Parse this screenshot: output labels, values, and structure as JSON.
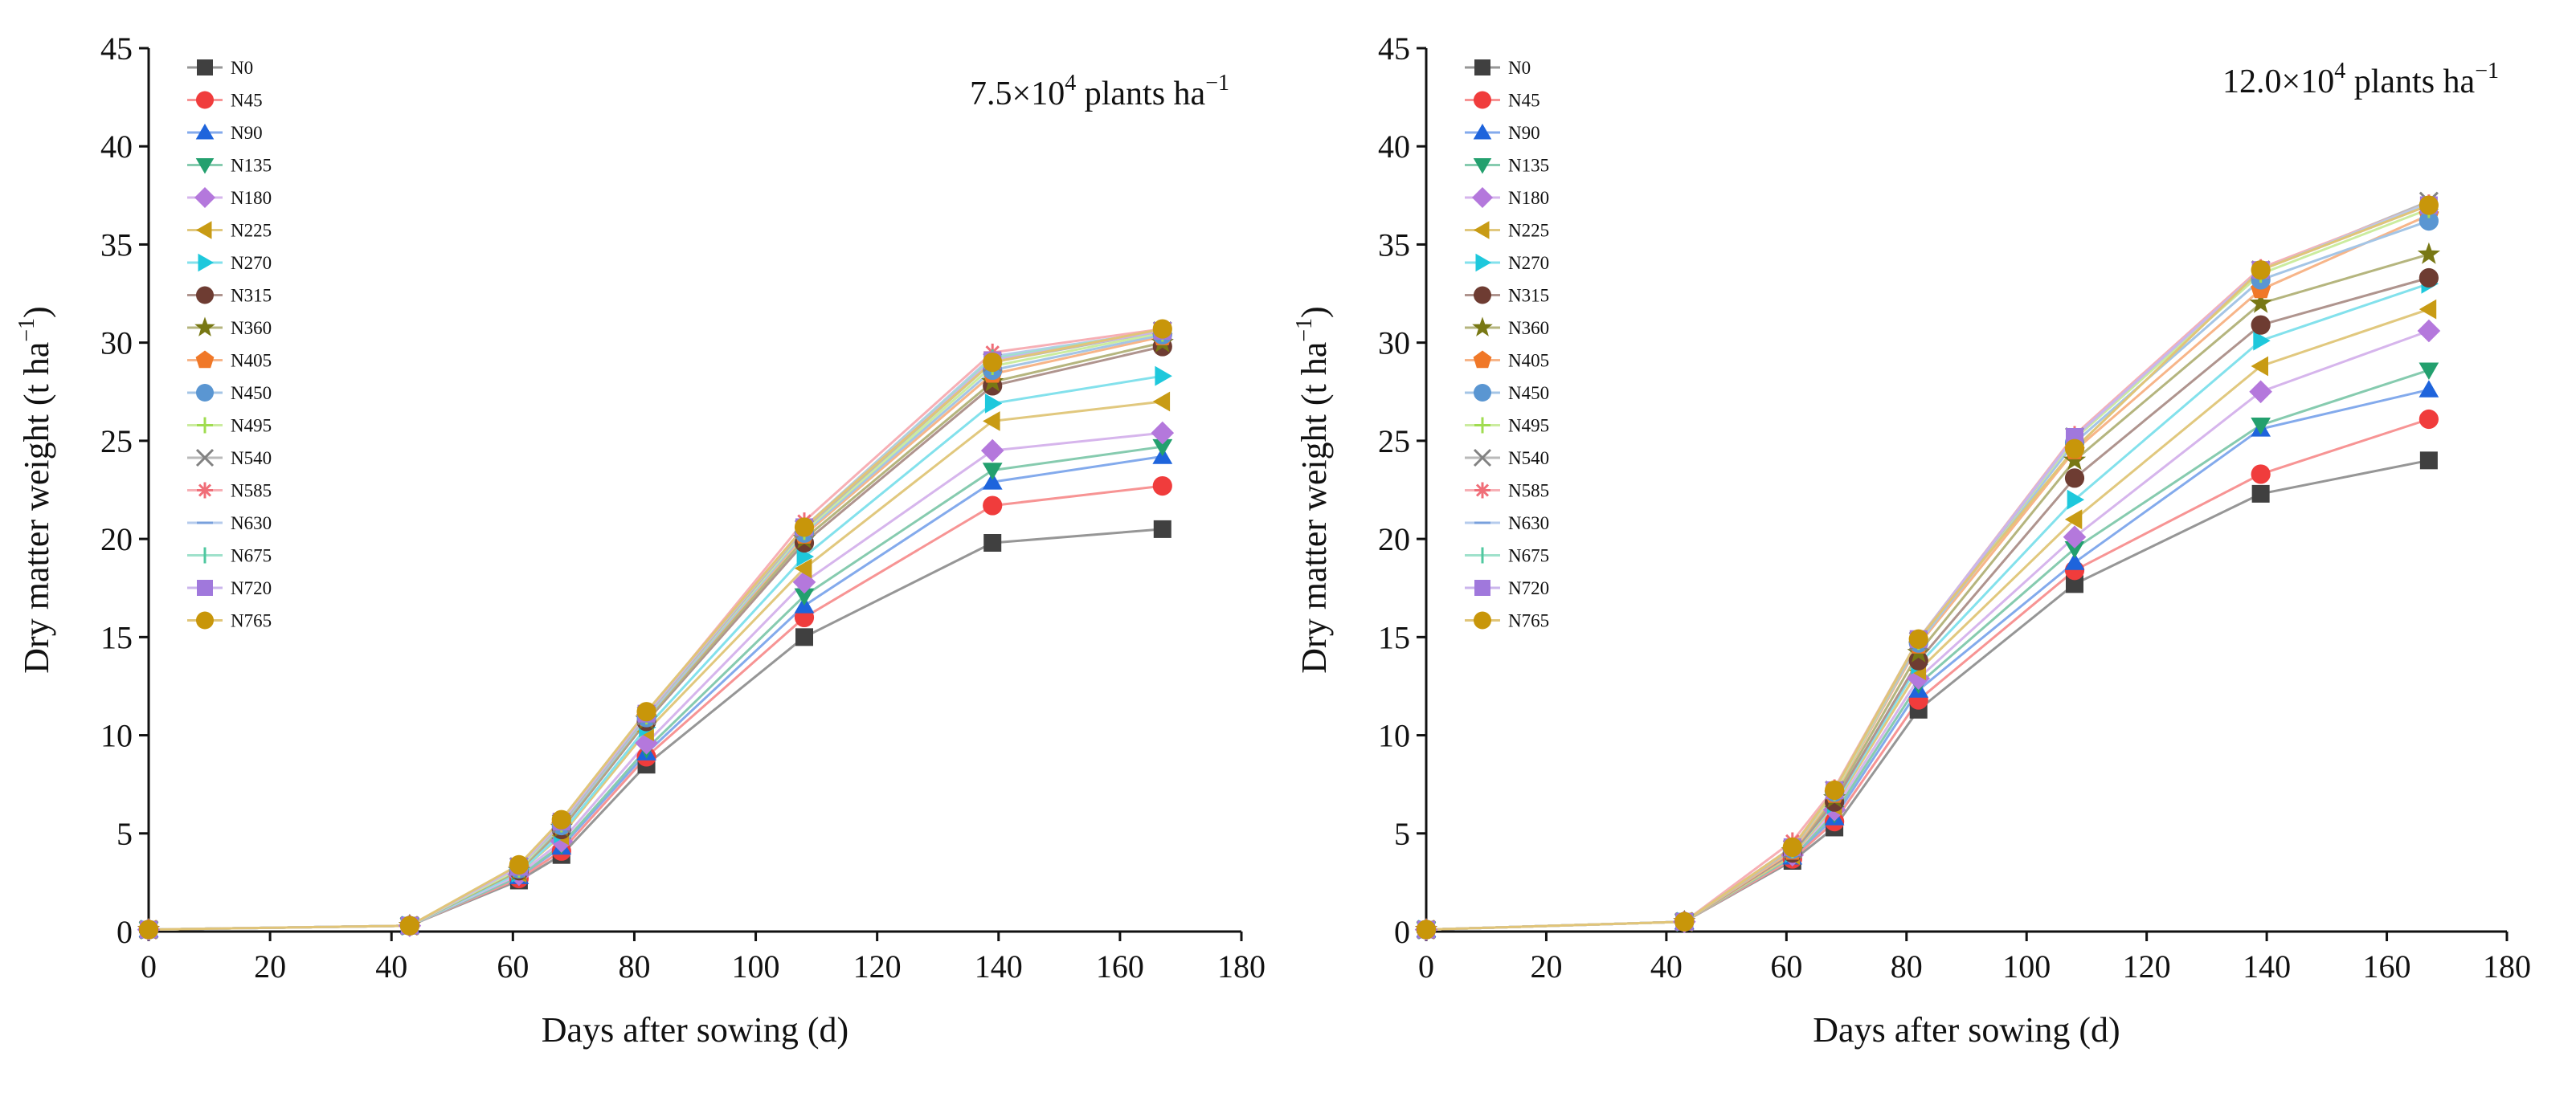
{
  "chart_data": [
    {
      "type": "line",
      "annotation": {
        "base": "7.5×10",
        "exp": "4",
        "mid": " plants ha",
        "sup": "−1"
      },
      "xlabel": "Days after sowing (d)",
      "ylabel": {
        "main": "Dry matter weight (t ha",
        "sup": "−1",
        "close": ")"
      },
      "xlim": [
        0,
        180
      ],
      "ylim": [
        0,
        45
      ],
      "xticks": [
        0,
        20,
        40,
        60,
        80,
        100,
        120,
        140,
        160,
        180
      ],
      "yticks": [
        0,
        5,
        10,
        15,
        20,
        25,
        30,
        35,
        40,
        45
      ],
      "x": [
        0,
        43,
        61,
        68,
        82,
        108,
        139,
        167
      ],
      "legend_position": "top-left",
      "series": [
        {
          "name": "N0",
          "color": "#404040",
          "marker": "square",
          "values": [
            0.1,
            0.3,
            2.6,
            3.9,
            8.5,
            15.0,
            19.8,
            20.5
          ]
        },
        {
          "name": "N45",
          "color": "#f03c3c",
          "marker": "circle",
          "values": [
            0.1,
            0.3,
            2.7,
            4.1,
            8.9,
            16.0,
            21.7,
            22.7
          ]
        },
        {
          "name": "N90",
          "color": "#1e64dc",
          "marker": "triangle-up",
          "values": [
            0.1,
            0.3,
            2.8,
            4.3,
            9.1,
            16.6,
            22.9,
            24.2
          ]
        },
        {
          "name": "N135",
          "color": "#23a06e",
          "marker": "triangle-down",
          "values": [
            0.1,
            0.3,
            2.8,
            4.4,
            9.3,
            17.1,
            23.5,
            24.7
          ]
        },
        {
          "name": "N180",
          "color": "#b478dc",
          "marker": "diamond",
          "values": [
            0.1,
            0.3,
            2.9,
            4.6,
            9.6,
            17.8,
            24.5,
            25.4
          ]
        },
        {
          "name": "N225",
          "color": "#c89b14",
          "marker": "triangle-left",
          "values": [
            0.1,
            0.3,
            3.0,
            4.9,
            10.2,
            18.5,
            26.0,
            27.0
          ]
        },
        {
          "name": "N270",
          "color": "#1ec8dc",
          "marker": "triangle-right",
          "values": [
            0.1,
            0.3,
            3.0,
            5.0,
            10.4,
            19.1,
            26.9,
            28.3
          ]
        },
        {
          "name": "N315",
          "color": "#6e3c32",
          "marker": "circle",
          "values": [
            0.1,
            0.3,
            3.1,
            5.2,
            10.7,
            19.8,
            27.8,
            29.8
          ]
        },
        {
          "name": "N360",
          "color": "#787814",
          "marker": "star",
          "values": [
            0.1,
            0.3,
            3.1,
            5.3,
            10.8,
            20.0,
            28.0,
            30.0
          ]
        },
        {
          "name": "N405",
          "color": "#f07828",
          "marker": "pentagon",
          "values": [
            0.1,
            0.3,
            3.2,
            5.4,
            10.9,
            20.2,
            28.4,
            30.3
          ]
        },
        {
          "name": "N450",
          "color": "#5a96d2",
          "marker": "circle",
          "values": [
            0.1,
            0.3,
            3.2,
            5.4,
            10.9,
            20.3,
            28.6,
            30.4
          ]
        },
        {
          "name": "N495",
          "color": "#a0dc50",
          "marker": "plus",
          "values": [
            0.1,
            0.3,
            3.2,
            5.5,
            11.0,
            20.4,
            28.8,
            30.5
          ]
        },
        {
          "name": "N540",
          "color": "#828282",
          "marker": "x",
          "values": [
            0.1,
            0.3,
            3.3,
            5.5,
            11.0,
            20.5,
            29.0,
            30.6
          ]
        },
        {
          "name": "N585",
          "color": "#f06e78",
          "marker": "asterisk",
          "values": [
            0.1,
            0.3,
            3.3,
            5.6,
            11.1,
            20.9,
            29.5,
            30.7
          ]
        },
        {
          "name": "N630",
          "color": "#78a0dc",
          "marker": "dash",
          "values": [
            0.1,
            0.3,
            3.3,
            5.6,
            11.1,
            20.6,
            29.3,
            30.6
          ]
        },
        {
          "name": "N675",
          "color": "#50c8a0",
          "marker": "vline",
          "values": [
            0.1,
            0.3,
            3.3,
            5.6,
            11.1,
            20.6,
            29.2,
            30.6
          ]
        },
        {
          "name": "N720",
          "color": "#a078dc",
          "marker": "square",
          "values": [
            0.1,
            0.3,
            3.3,
            5.6,
            11.1,
            20.6,
            29.1,
            30.6
          ]
        },
        {
          "name": "N765",
          "color": "#c8960a",
          "marker": "circle",
          "values": [
            0.1,
            0.3,
            3.4,
            5.7,
            11.2,
            20.6,
            29.0,
            30.7
          ]
        }
      ]
    },
    {
      "type": "line",
      "annotation": {
        "base": "12.0×10",
        "exp": "4",
        "mid": " plants ha",
        "sup": "−1"
      },
      "xlabel": "Days after sowing (d)",
      "ylabel": {
        "main": "Dry matter weight (t ha",
        "sup": "−1",
        "close": ")"
      },
      "xlim": [
        0,
        180
      ],
      "ylim": [
        0,
        45
      ],
      "xticks": [
        0,
        20,
        40,
        60,
        80,
        100,
        120,
        140,
        160,
        180
      ],
      "yticks": [
        0,
        5,
        10,
        15,
        20,
        25,
        30,
        35,
        40,
        45
      ],
      "x": [
        0,
        43,
        61,
        68,
        82,
        108,
        139,
        167
      ],
      "legend_position": "top-left",
      "series": [
        {
          "name": "N0",
          "color": "#404040",
          "marker": "square",
          "values": [
            0.1,
            0.5,
            3.6,
            5.3,
            11.3,
            17.7,
            22.3,
            24.0
          ]
        },
        {
          "name": "N45",
          "color": "#f03c3c",
          "marker": "circle",
          "values": [
            0.1,
            0.5,
            3.7,
            5.6,
            11.8,
            18.4,
            23.3,
            26.1
          ]
        },
        {
          "name": "N90",
          "color": "#1e64dc",
          "marker": "triangle-up",
          "values": [
            0.1,
            0.5,
            3.8,
            5.8,
            12.3,
            18.8,
            25.6,
            27.6
          ]
        },
        {
          "name": "N135",
          "color": "#23a06e",
          "marker": "triangle-down",
          "values": [
            0.1,
            0.5,
            3.8,
            6.0,
            12.6,
            19.5,
            25.8,
            28.6
          ]
        },
        {
          "name": "N180",
          "color": "#b478dc",
          "marker": "diamond",
          "values": [
            0.1,
            0.5,
            3.9,
            6.2,
            12.9,
            20.1,
            27.5,
            30.6
          ]
        },
        {
          "name": "N225",
          "color": "#c89b14",
          "marker": "triangle-left",
          "values": [
            0.1,
            0.5,
            3.9,
            6.4,
            13.3,
            21.0,
            28.8,
            31.7
          ]
        },
        {
          "name": "N270",
          "color": "#1ec8dc",
          "marker": "triangle-right",
          "values": [
            0.1,
            0.5,
            4.0,
            6.5,
            13.6,
            22.0,
            30.1,
            33.0
          ]
        },
        {
          "name": "N315",
          "color": "#6e3c32",
          "marker": "circle",
          "values": [
            0.1,
            0.5,
            4.0,
            6.6,
            13.8,
            23.1,
            30.9,
            33.3
          ]
        },
        {
          "name": "N360",
          "color": "#787814",
          "marker": "star",
          "values": [
            0.1,
            0.5,
            4.1,
            6.8,
            14.2,
            24.0,
            32.0,
            34.5
          ]
        },
        {
          "name": "N405",
          "color": "#f07828",
          "marker": "pentagon",
          "values": [
            0.1,
            0.5,
            4.1,
            7.0,
            14.6,
            24.5,
            32.7,
            36.5
          ]
        },
        {
          "name": "N450",
          "color": "#5a96d2",
          "marker": "circle",
          "values": [
            0.1,
            0.5,
            4.2,
            7.1,
            14.7,
            24.9,
            33.2,
            36.2
          ]
        },
        {
          "name": "N495",
          "color": "#a0dc50",
          "marker": "plus",
          "values": [
            0.1,
            0.5,
            4.2,
            7.1,
            14.8,
            25.1,
            33.5,
            36.8
          ]
        },
        {
          "name": "N540",
          "color": "#828282",
          "marker": "x",
          "values": [
            0.1,
            0.5,
            4.2,
            7.2,
            14.8,
            25.2,
            33.7,
            37.2
          ]
        },
        {
          "name": "N585",
          "color": "#f06e78",
          "marker": "asterisk",
          "values": [
            0.1,
            0.5,
            4.6,
            7.3,
            14.9,
            25.3,
            33.8,
            37.1
          ]
        },
        {
          "name": "N630",
          "color": "#78a0dc",
          "marker": "dash",
          "values": [
            0.1,
            0.5,
            4.3,
            7.2,
            14.9,
            25.2,
            33.7,
            37.1
          ]
        },
        {
          "name": "N675",
          "color": "#50c8a0",
          "marker": "vline",
          "values": [
            0.1,
            0.5,
            4.3,
            7.2,
            14.9,
            25.2,
            33.7,
            37.0
          ]
        },
        {
          "name": "N720",
          "color": "#a078dc",
          "marker": "square",
          "values": [
            0.1,
            0.5,
            4.3,
            7.2,
            14.9,
            25.2,
            33.7,
            37.0
          ]
        },
        {
          "name": "N765",
          "color": "#c8960a",
          "marker": "circle",
          "values": [
            0.1,
            0.5,
            4.3,
            7.2,
            14.9,
            24.6,
            33.7,
            37.0
          ]
        }
      ]
    }
  ]
}
